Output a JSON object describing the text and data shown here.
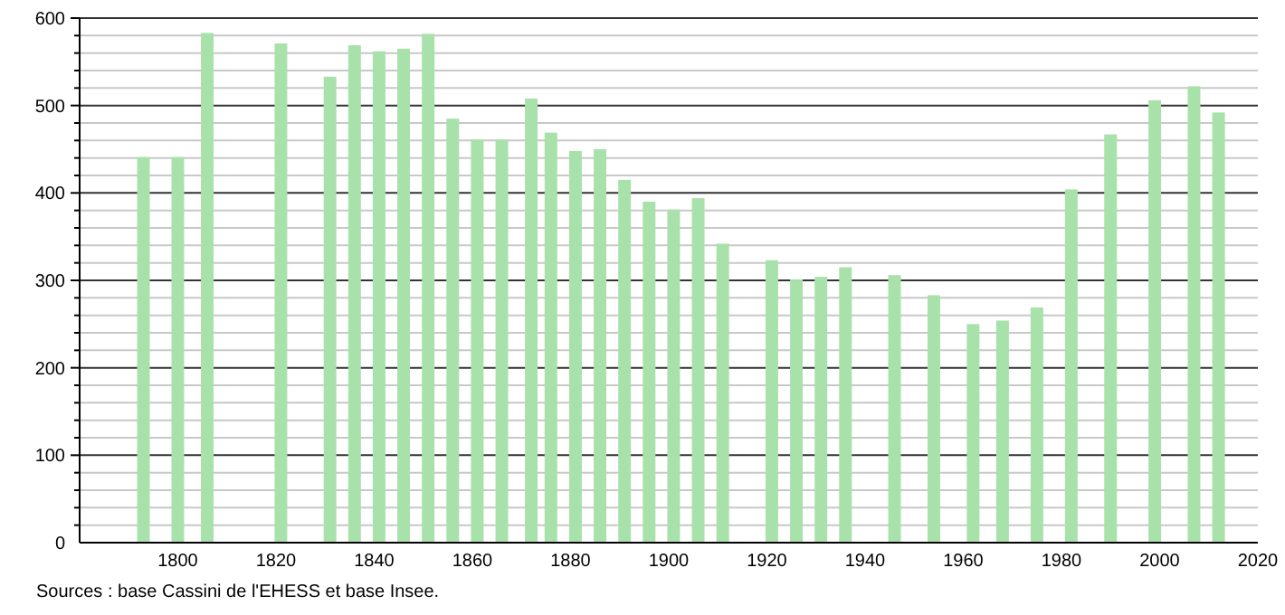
{
  "chart_data": {
    "type": "bar",
    "x": [
      1793,
      1800,
      1806,
      1821,
      1831,
      1836,
      1841,
      1846,
      1851,
      1856,
      1861,
      1866,
      1872,
      1876,
      1881,
      1886,
      1891,
      1896,
      1901,
      1906,
      1911,
      1921,
      1926,
      1931,
      1936,
      1946,
      1954,
      1962,
      1968,
      1975,
      1982,
      1990,
      1999,
      2007,
      2012
    ],
    "values": [
      441,
      441,
      583,
      571,
      533,
      569,
      562,
      565,
      582,
      485,
      461,
      461,
      508,
      469,
      448,
      450,
      415,
      390,
      381,
      394,
      342,
      323,
      301,
      304,
      315,
      306,
      283,
      250,
      254,
      269,
      404,
      467,
      506,
      522,
      492
    ],
    "color": "#a8e2aa",
    "xlim": [
      1780,
      2020
    ],
    "xticks": [
      1800,
      1820,
      1840,
      1860,
      1880,
      1900,
      1920,
      1940,
      1960,
      1980,
      2000,
      2020
    ],
    "ylim": [
      0,
      600
    ],
    "yticks": [
      0,
      {
        "value": 20,
        "label": null
      },
      {
        "value": 40,
        "label": null
      },
      {
        "value": 60,
        "label": null
      },
      {
        "value": 80,
        "label": null
      },
      100,
      {
        "value": 120,
        "label": null
      },
      {
        "value": 140,
        "label": null
      },
      {
        "value": 160,
        "label": null
      },
      {
        "value": 180,
        "label": null
      },
      200,
      {
        "value": 220,
        "label": null
      },
      {
        "value": 240,
        "label": null
      },
      {
        "value": 260,
        "label": null
      },
      {
        "value": 280,
        "label": null
      },
      300,
      {
        "value": 320,
        "label": null
      },
      {
        "value": 340,
        "label": null
      },
      {
        "value": 360,
        "label": null
      },
      {
        "value": 380,
        "label": null
      },
      400,
      {
        "value": 420,
        "label": null
      },
      {
        "value": 440,
        "label": null
      },
      {
        "value": 460,
        "label": null
      },
      {
        "value": 480,
        "label": null
      },
      500,
      {
        "value": 520,
        "label": null
      },
      {
        "value": 540,
        "label": null
      },
      {
        "value": 560,
        "label": null
      },
      {
        "value": 580,
        "label": null
      },
      600
    ],
    "grid": true,
    "annotations": [
      "Sources : base Cassini de l'EHESS et base Insee."
    ]
  }
}
